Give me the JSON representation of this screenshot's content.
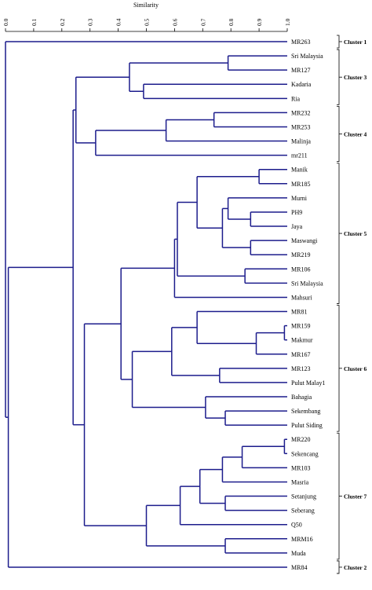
{
  "axis": {
    "title": "Similarity",
    "ticks": [
      "0.0",
      "0.1",
      "0.2",
      "0.3",
      "0.4",
      "0.5",
      "0.6",
      "0.7",
      "0.8",
      "0.9",
      "1.0"
    ]
  },
  "leaves": [
    "MR263",
    "Sri Malaysia",
    "MR127",
    "Kadaria",
    "Ria",
    "MR232",
    "MR253",
    "Malinja",
    "mr211",
    "Manik",
    "MR185",
    "Murni",
    "PH9",
    "Jaya",
    "Maswangi",
    "MR219",
    "MR106",
    "Sri Malaysia",
    "Mahsuri",
    "MR81",
    "MR159",
    "Makmur",
    "MR167",
    "MR123",
    "Pulut Malay1",
    "Bahagia",
    "Sekembang",
    "Pulut Siding",
    "MR220",
    "Sekencang",
    "MR103",
    "Masria",
    "Setanjung",
    "Seberang",
    "Q50",
    "MRM16",
    "Muda",
    "MR84"
  ],
  "clusters": [
    {
      "label": "Cluster 1",
      "first_leaf": 0,
      "last_leaf": 0
    },
    {
      "label": "Cluster 3",
      "first_leaf": 1,
      "last_leaf": 4
    },
    {
      "label": "Cluster 4",
      "first_leaf": 5,
      "last_leaf": 8
    },
    {
      "label": "Cluster 5",
      "first_leaf": 9,
      "last_leaf": 18
    },
    {
      "label": "Cluster 6",
      "first_leaf": 19,
      "last_leaf": 27
    },
    {
      "label": "Cluster 7",
      "first_leaf": 28,
      "last_leaf": 36
    },
    {
      "label": "Cluster 2",
      "first_leaf": 37,
      "last_leaf": 37
    }
  ],
  "tree": {
    "sim": 0.0,
    "children": [
      {
        "leaf": 0
      },
      {
        "sim": 0.01,
        "children": [
          {
            "sim": 0.24,
            "children": [
              {
                "sim": 0.25,
                "children": [
                  {
                    "sim": 0.44,
                    "children": [
                      {
                        "sim": 0.79,
                        "children": [
                          {
                            "leaf": 1
                          },
                          {
                            "leaf": 2
                          }
                        ]
                      },
                      {
                        "sim": 0.49,
                        "children": [
                          {
                            "leaf": 3
                          },
                          {
                            "leaf": 4
                          }
                        ]
                      }
                    ]
                  },
                  {
                    "sim": 0.32,
                    "children": [
                      {
                        "sim": 0.57,
                        "children": [
                          {
                            "sim": 0.74,
                            "children": [
                              {
                                "leaf": 5
                              },
                              {
                                "leaf": 6
                              }
                            ]
                          },
                          {
                            "leaf": 7
                          }
                        ]
                      },
                      {
                        "leaf": 8
                      }
                    ]
                  }
                ]
              },
              {
                "sim": 0.28,
                "children": [
                  {
                    "sim": 0.41,
                    "children": [
                      {
                        "sim": 0.6,
                        "children": [
                          {
                            "sim": 0.61,
                            "children": [
                              {
                                "sim": 0.68,
                                "children": [
                                  {
                                    "sim": 0.9,
                                    "children": [
                                      {
                                        "leaf": 9
                                      },
                                      {
                                        "leaf": 10
                                      }
                                    ]
                                  },
                                  {
                                    "sim": 0.77,
                                    "children": [
                                      {
                                        "sim": 0.79,
                                        "children": [
                                          {
                                            "leaf": 11
                                          },
                                          {
                                            "sim": 0.87,
                                            "children": [
                                              {
                                                "leaf": 12
                                              },
                                              {
                                                "leaf": 13
                                              }
                                            ]
                                          }
                                        ]
                                      },
                                      {
                                        "sim": 0.87,
                                        "children": [
                                          {
                                            "leaf": 14
                                          },
                                          {
                                            "leaf": 15
                                          }
                                        ]
                                      }
                                    ]
                                  }
                                ]
                              },
                              {
                                "sim": 0.85,
                                "children": [
                                  {
                                    "leaf": 16
                                  },
                                  {
                                    "leaf": 17
                                  }
                                ]
                              }
                            ]
                          },
                          {
                            "leaf": 18
                          }
                        ]
                      },
                      {
                        "sim": 0.45,
                        "children": [
                          {
                            "sim": 0.59,
                            "children": [
                              {
                                "sim": 0.68,
                                "children": [
                                  {
                                    "leaf": 19
                                  },
                                  {
                                    "sim": 0.89,
                                    "children": [
                                      {
                                        "sim": 0.99,
                                        "children": [
                                          {
                                            "leaf": 20
                                          },
                                          {
                                            "leaf": 21
                                          }
                                        ]
                                      },
                                      {
                                        "leaf": 22
                                      }
                                    ]
                                  }
                                ]
                              },
                              {
                                "sim": 0.76,
                                "children": [
                                  {
                                    "leaf": 23
                                  },
                                  {
                                    "leaf": 24
                                  }
                                ]
                              }
                            ]
                          },
                          {
                            "sim": 0.71,
                            "children": [
                              {
                                "leaf": 25
                              },
                              {
                                "sim": 0.78,
                                "children": [
                                  {
                                    "leaf": 26
                                  },
                                  {
                                    "leaf": 27
                                  }
                                ]
                              }
                            ]
                          }
                        ]
                      }
                    ]
                  },
                  {
                    "sim": 0.5,
                    "children": [
                      {
                        "sim": 0.62,
                        "children": [
                          {
                            "sim": 0.69,
                            "children": [
                              {
                                "sim": 0.77,
                                "children": [
                                  {
                                    "sim": 0.84,
                                    "children": [
                                      {
                                        "sim": 0.99,
                                        "children": [
                                          {
                                            "leaf": 28
                                          },
                                          {
                                            "leaf": 29
                                          }
                                        ]
                                      },
                                      {
                                        "leaf": 30
                                      }
                                    ]
                                  },
                                  {
                                    "leaf": 31
                                  }
                                ]
                              },
                              {
                                "sim": 0.78,
                                "children": [
                                  {
                                    "leaf": 32
                                  },
                                  {
                                    "leaf": 33
                                  }
                                ]
                              }
                            ]
                          },
                          {
                            "leaf": 34
                          }
                        ]
                      },
                      {
                        "sim": 0.78,
                        "children": [
                          {
                            "leaf": 35
                          },
                          {
                            "leaf": 36
                          }
                        ]
                      }
                    ]
                  }
                ]
              }
            ]
          },
          {
            "leaf": 37
          }
        ]
      }
    ]
  }
}
